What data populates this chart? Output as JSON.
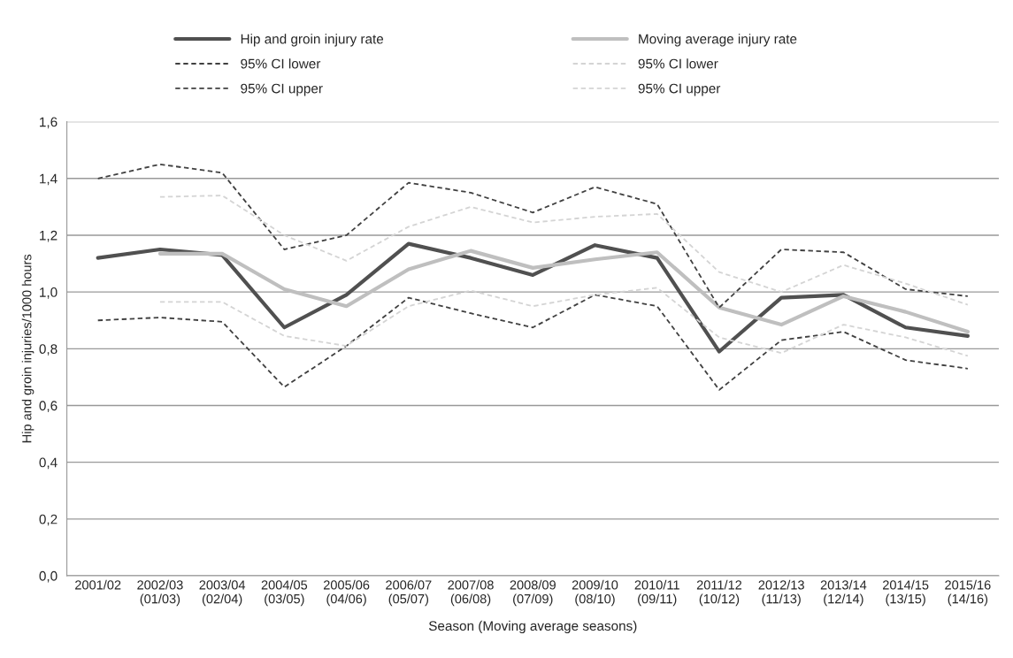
{
  "chart_data": {
    "type": "line",
    "xlabel": "Season (Moving average seasons)",
    "ylabel": "Hip and groin injuries/1000 hours",
    "categories": [
      "2001/02",
      "2002/03\n(01/03)",
      "2003/04\n(02/04)",
      "2004/05\n(03/05)",
      "2005/06\n(04/06)",
      "2006/07\n(05/07)",
      "2007/08\n(06/08)",
      "2008/09\n(07/09)",
      "2009/10\n(08/10)",
      "2010/11\n(09/11)",
      "2011/12\n(10/12)",
      "2012/13\n(11/13)",
      "2013/14\n(12/14)",
      "2014/15\n(13/15)",
      "2015/16\n(14/16)"
    ],
    "series": [
      {
        "name": "Hip and groin injury rate",
        "color": "#505050",
        "line_style": "solid",
        "values": [
          1.12,
          1.15,
          1.13,
          0.875,
          0.99,
          1.17,
          1.12,
          1.06,
          1.165,
          1.12,
          0.79,
          0.98,
          0.99,
          0.875,
          0.845
        ]
      },
      {
        "name": "Moving average injury rate",
        "color": "#bfbfbf",
        "line_style": "solid",
        "values": [
          null,
          1.135,
          1.135,
          1.01,
          0.95,
          1.08,
          1.145,
          1.085,
          1.115,
          1.14,
          0.945,
          0.885,
          0.985,
          0.93,
          0.86
        ]
      },
      {
        "name": "95% CI lower",
        "color": "#404040",
        "line_style": "dashed",
        "values": [
          0.9,
          0.91,
          0.895,
          0.665,
          0.81,
          0.98,
          0.925,
          0.875,
          0.99,
          0.95,
          0.655,
          0.83,
          0.86,
          0.76,
          0.73
        ]
      },
      {
        "name": "95% CI lower",
        "color": "#d4d4d4",
        "line_style": "dashed",
        "values": [
          null,
          0.965,
          0.965,
          0.845,
          0.81,
          0.95,
          1.005,
          0.95,
          0.99,
          1.015,
          0.84,
          0.785,
          0.885,
          0.84,
          0.775
        ]
      },
      {
        "name": "95% CI upper",
        "color": "#404040",
        "line_style": "dashed",
        "values": [
          1.4,
          1.45,
          1.42,
          1.15,
          1.2,
          1.385,
          1.35,
          1.28,
          1.37,
          1.31,
          0.945,
          1.15,
          1.14,
          1.01,
          0.985
        ]
      },
      {
        "name": "95% CI upper",
        "color": "#d4d4d4",
        "line_style": "dashed",
        "values": [
          null,
          1.335,
          1.34,
          1.2,
          1.11,
          1.23,
          1.3,
          1.245,
          1.265,
          1.275,
          1.07,
          1.0,
          1.095,
          1.03,
          0.955
        ]
      }
    ],
    "ylim": [
      0,
      1.6
    ],
    "yticks": [
      {
        "value": 0,
        "label": "0,0"
      },
      {
        "value": 0.2,
        "label": "0,2"
      },
      {
        "value": 0.4,
        "label": "0,4"
      },
      {
        "value": 0.6,
        "label": "0,6"
      },
      {
        "value": 0.8,
        "label": "0,8"
      },
      {
        "value": 1.0,
        "label": "1,0"
      },
      {
        "value": 1.2,
        "label": "1,2"
      },
      {
        "value": 1.4,
        "label": "1,4"
      },
      {
        "value": 1.6,
        "label": "1,6"
      }
    ],
    "grid": "y",
    "legend": "top",
    "marker": "none"
  }
}
